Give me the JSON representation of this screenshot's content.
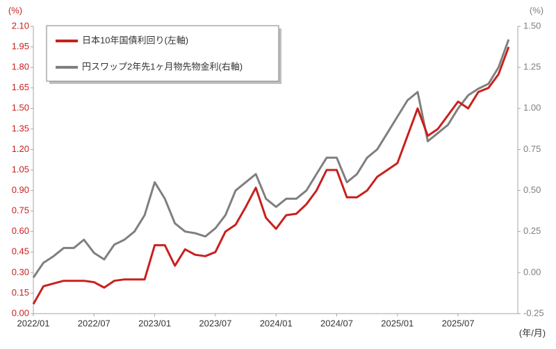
{
  "chart_data": {
    "type": "line",
    "y_label": "(%)",
    "y2_label": "(%)",
    "x_label": "(年/月)",
    "x": [
      "2022/01",
      "2022/02",
      "2022/03",
      "2022/04",
      "2022/05",
      "2022/06",
      "2022/07",
      "2022/08",
      "2022/09",
      "2022/10",
      "2022/11",
      "2022/12",
      "2023/01",
      "2023/02",
      "2023/03",
      "2023/04",
      "2023/05",
      "2023/06",
      "2023/07",
      "2023/08",
      "2023/09",
      "2023/10",
      "2023/11",
      "2023/12",
      "2024/01",
      "2024/02",
      "2024/03",
      "2024/04",
      "2024/05",
      "2024/06",
      "2024/07",
      "2024/08",
      "2024/09",
      "2024/10",
      "2024/11",
      "2024/12",
      "2025/01",
      "2025/02",
      "2025/03",
      "2025/04",
      "2025/05",
      "2025/06",
      "2025/07",
      "2025/08",
      "2025/09",
      "2025/10",
      "2025/11",
      "2025/12"
    ],
    "xticks": [
      0,
      6,
      12,
      18,
      24,
      30,
      36,
      42
    ],
    "ylim": [
      0,
      2.1
    ],
    "yticks": [
      {
        "value": 0,
        "label": "0.00"
      },
      {
        "value": 0.15,
        "label": "0.15"
      },
      {
        "value": 0.3,
        "label": "0.30"
      },
      {
        "value": 0.45,
        "label": "0.45"
      },
      {
        "value": 0.6,
        "label": "0.60"
      },
      {
        "value": 0.75,
        "label": "0.75"
      },
      {
        "value": 0.9,
        "label": "0.90"
      },
      {
        "value": 1.05,
        "label": "1.05"
      },
      {
        "value": 1.2,
        "label": "1.20"
      },
      {
        "value": 1.35,
        "label": "1.35"
      },
      {
        "value": 1.5,
        "label": "1.50"
      },
      {
        "value": 1.65,
        "label": "1.65"
      },
      {
        "value": 1.8,
        "label": "1.80"
      },
      {
        "value": 1.95,
        "label": "1.95"
      },
      {
        "value": 2.1,
        "label": "2.10"
      }
    ],
    "y2lim": [
      -0.25,
      1.5
    ],
    "y2ticks": [
      {
        "value": -0.25,
        "label": "-0.25"
      },
      {
        "value": 0,
        "label": "0.00"
      },
      {
        "value": 0.25,
        "label": "0.25"
      },
      {
        "value": 0.5,
        "label": "0.50"
      },
      {
        "value": 0.75,
        "label": "0.75"
      },
      {
        "value": 1,
        "label": "1.00"
      },
      {
        "value": 1.25,
        "label": "1.25"
      },
      {
        "value": 1.5,
        "label": "1.50"
      }
    ],
    "series": [
      {
        "name": "日本10年国債利回り(左軸)",
        "color": "#c8201e",
        "axis": "y",
        "values": [
          0.07,
          0.2,
          0.22,
          0.24,
          0.24,
          0.24,
          0.23,
          0.19,
          0.24,
          0.25,
          0.25,
          0.25,
          0.5,
          0.5,
          0.35,
          0.47,
          0.43,
          0.42,
          0.45,
          0.6,
          0.65,
          0.78,
          0.92,
          0.7,
          0.62,
          0.72,
          0.73,
          0.8,
          0.9,
          1.05,
          1.05,
          0.85,
          0.85,
          0.9,
          1.0,
          1.05,
          1.1,
          1.3,
          1.5,
          1.3,
          1.35,
          1.45,
          1.55,
          1.5,
          1.62,
          1.65,
          1.75,
          1.95
        ]
      },
      {
        "name": "円スワップ2年先1ヶ月物先物金利(右軸)",
        "color": "#7f7f7f",
        "axis": "y2",
        "values": [
          -0.03,
          0.06,
          0.1,
          0.15,
          0.15,
          0.2,
          0.12,
          0.08,
          0.17,
          0.2,
          0.25,
          0.35,
          0.55,
          0.45,
          0.3,
          0.25,
          0.24,
          0.22,
          0.27,
          0.35,
          0.5,
          0.55,
          0.6,
          0.45,
          0.4,
          0.45,
          0.45,
          0.5,
          0.6,
          0.7,
          0.7,
          0.55,
          0.6,
          0.7,
          0.75,
          0.85,
          0.95,
          1.05,
          1.1,
          0.8,
          0.85,
          0.9,
          1.0,
          1.08,
          1.12,
          1.15,
          1.25,
          1.42
        ]
      }
    ]
  }
}
